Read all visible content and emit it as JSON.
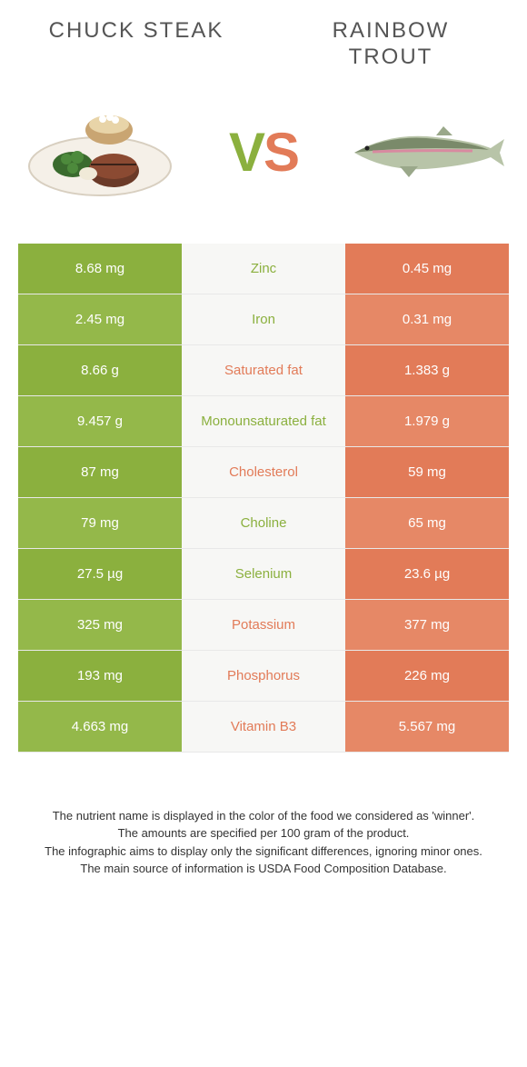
{
  "titles": {
    "left": "CHUCK STEAK",
    "right": "RAINBOW TROUT"
  },
  "vs": {
    "v": "V",
    "s": "S"
  },
  "colors": {
    "green": "#8bb03e",
    "green_alt": "#94b84a",
    "orange": "#e27b58",
    "orange_alt": "#e68866",
    "mid_bg": "#f7f7f5",
    "text": "#333333"
  },
  "rows": [
    {
      "nutrient": "Zinc",
      "left": "8.68 mg",
      "right": "0.45 mg",
      "winner": "left"
    },
    {
      "nutrient": "Iron",
      "left": "2.45 mg",
      "right": "0.31 mg",
      "winner": "left"
    },
    {
      "nutrient": "Saturated fat",
      "left": "8.66 g",
      "right": "1.383 g",
      "winner": "right"
    },
    {
      "nutrient": "Monounsaturated fat",
      "left": "9.457 g",
      "right": "1.979 g",
      "winner": "left"
    },
    {
      "nutrient": "Cholesterol",
      "left": "87 mg",
      "right": "59 mg",
      "winner": "right"
    },
    {
      "nutrient": "Choline",
      "left": "79 mg",
      "right": "65 mg",
      "winner": "left"
    },
    {
      "nutrient": "Selenium",
      "left": "27.5 µg",
      "right": "23.6 µg",
      "winner": "left"
    },
    {
      "nutrient": "Potassium",
      "left": "325 mg",
      "right": "377 mg",
      "winner": "right"
    },
    {
      "nutrient": "Phosphorus",
      "left": "193 mg",
      "right": "226 mg",
      "winner": "right"
    },
    {
      "nutrient": "Vitamin B3",
      "left": "4.663 mg",
      "right": "5.567 mg",
      "winner": "right"
    }
  ],
  "footer": {
    "l1": "The nutrient name is displayed in the color of the food we considered as 'winner'.",
    "l2": "The amounts are specified per 100 gram of the product.",
    "l3": "The infographic aims to display only the significant differences, ignoring minor ones.",
    "l4": "The main source of information is USDA Food Composition Database."
  }
}
